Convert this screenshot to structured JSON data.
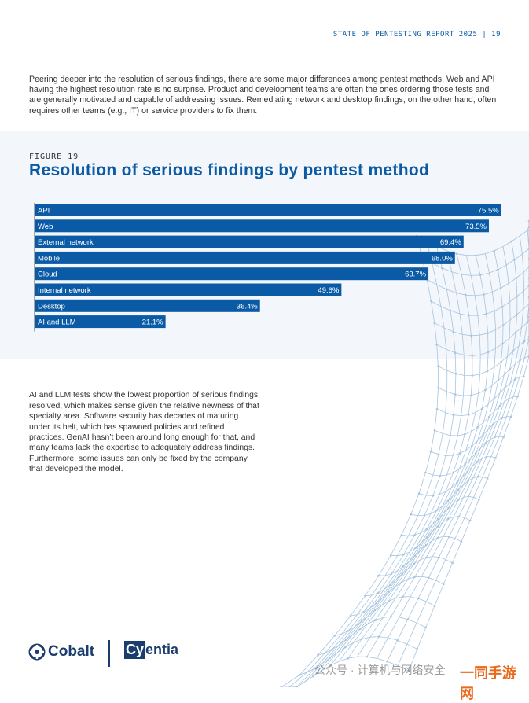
{
  "header": {
    "text": "STATE OF PENTESTING REPORT 2025 | 19"
  },
  "intro": "Peering deeper into the resolution of serious findings, there are some major differences among pentest methods. Web and API having the highest resolution rate is no surprise. Product and development teams are often the ones ordering those tests and are generally motivated and capable of addressing issues. Remediating network and desktop findings, on the other hand, often requires other teams (e.g., IT) or service providers to fix them.",
  "figure": {
    "label": "FIGURE 19",
    "title": "Resolution of serious findings by pentest method"
  },
  "colors": {
    "bar": "#0b5aa6",
    "accent": "#0b5aa6",
    "panel": "#f3f6fa",
    "mesh": "#a8c5e0"
  },
  "chart_data": {
    "type": "bar",
    "orientation": "horizontal",
    "title": "Resolution of serious findings by pentest method",
    "categories": [
      "API",
      "Web",
      "External network",
      "Mobile",
      "Cloud",
      "Internal network",
      "Desktop",
      "AI and LLM"
    ],
    "values": [
      75.5,
      73.5,
      69.4,
      68.0,
      63.7,
      49.6,
      36.4,
      21.1
    ],
    "value_labels": [
      "75.5%",
      "73.5%",
      "69.4%",
      "68.0%",
      "63.7%",
      "49.6%",
      "36.4%",
      "21.1%"
    ],
    "xlim": [
      0,
      100
    ],
    "grid": false,
    "legend": "none"
  },
  "body_text": "AI and LLM tests show the lowest proportion of serious findings resolved, which makes sense given the relative newness of that specialty area. Software security has decades of maturing under its belt, which has spawned policies and refined practices. GenAI hasn’t been around long enough for that, and many teams lack the expertise to adequately address findings. Furthermore, some issues can only be fixed by the company that developed the model.",
  "footer": {
    "logo_cobalt": "Cobalt",
    "logo_cyentia": "Cyentia",
    "logo_cyentia_prefix": "Cy",
    "logo_cyentia_suffix": "entia",
    "watermark": "公众号 · 计算机与网络安全",
    "watermark_site": "一同手游网"
  }
}
